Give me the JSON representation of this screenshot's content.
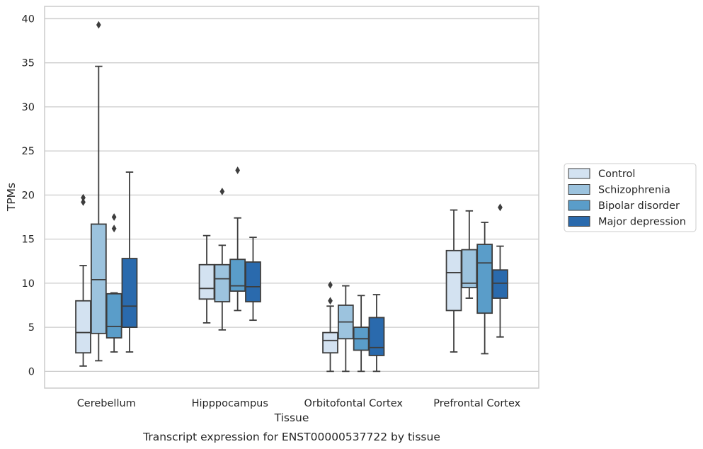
{
  "chart_data": {
    "type": "box",
    "caption": "Transcript expression for ENST00000537722 by tissue",
    "xlabel": "Tissue",
    "ylabel": "TPMs",
    "ylim": [
      -1.9,
      41.4
    ],
    "yticks": [
      0,
      5,
      10,
      15,
      20,
      25,
      30,
      35,
      40
    ],
    "grid": "horizontal",
    "legend_position": "right",
    "categories": [
      "Cerebellum",
      "Hipppocampus",
      "Orbitofontal Cortex",
      "Prefrontal Cortex"
    ],
    "series": [
      {
        "name": "Control",
        "color": "#d3e2f1",
        "boxes": [
          {
            "whislo": 0.6,
            "q1": 2.1,
            "med": 4.4,
            "q3": 8.0,
            "whishi": 12.0,
            "fliers": [
              19.2,
              19.7
            ]
          },
          {
            "whislo": 5.5,
            "q1": 8.2,
            "med": 9.4,
            "q3": 12.1,
            "whishi": 15.4,
            "fliers": []
          },
          {
            "whislo": 0.0,
            "q1": 2.1,
            "med": 3.5,
            "q3": 4.4,
            "whishi": 7.4,
            "fliers": [
              8.0,
              9.8
            ]
          },
          {
            "whislo": 2.2,
            "q1": 6.9,
            "med": 11.2,
            "q3": 13.7,
            "whishi": 18.3,
            "fliers": []
          }
        ]
      },
      {
        "name": "Schizophrenia",
        "color": "#9cc3de",
        "boxes": [
          {
            "whislo": 1.2,
            "q1": 4.3,
            "med": 10.4,
            "q3": 16.7,
            "whishi": 34.6,
            "fliers": [
              39.3
            ]
          },
          {
            "whislo": 4.7,
            "q1": 7.9,
            "med": 10.5,
            "q3": 12.1,
            "whishi": 14.3,
            "fliers": [
              20.4
            ]
          },
          {
            "whislo": 0.0,
            "q1": 3.7,
            "med": 5.6,
            "q3": 7.5,
            "whishi": 9.7,
            "fliers": []
          },
          {
            "whislo": 8.3,
            "q1": 9.5,
            "med": 10.0,
            "q3": 13.8,
            "whishi": 18.2,
            "fliers": []
          }
        ]
      },
      {
        "name": "Bipolar disorder",
        "color": "#5a9dc9",
        "boxes": [
          {
            "whislo": 2.2,
            "q1": 3.8,
            "med": 5.1,
            "q3": 8.8,
            "whishi": 8.9,
            "fliers": [
              16.2,
              17.5
            ]
          },
          {
            "whislo": 6.9,
            "q1": 9.1,
            "med": 9.7,
            "q3": 12.7,
            "whishi": 17.4,
            "fliers": [
              22.8
            ]
          },
          {
            "whislo": 0.0,
            "q1": 2.4,
            "med": 3.7,
            "q3": 5.0,
            "whishi": 8.6,
            "fliers": []
          },
          {
            "whislo": 2.0,
            "q1": 6.6,
            "med": 12.3,
            "q3": 14.4,
            "whishi": 16.9,
            "fliers": []
          }
        ]
      },
      {
        "name": "Major depression",
        "color": "#2a6aad",
        "boxes": [
          {
            "whislo": 2.2,
            "q1": 5.0,
            "med": 7.4,
            "q3": 12.8,
            "whishi": 22.6,
            "fliers": []
          },
          {
            "whislo": 5.8,
            "q1": 7.9,
            "med": 9.6,
            "q3": 12.4,
            "whishi": 15.2,
            "fliers": []
          },
          {
            "whislo": 0.0,
            "q1": 1.8,
            "med": 2.7,
            "q3": 6.1,
            "whishi": 8.7,
            "fliers": []
          },
          {
            "whislo": 3.9,
            "q1": 8.3,
            "med": 10.0,
            "q3": 11.5,
            "whishi": 14.2,
            "fliers": [
              18.6
            ]
          }
        ]
      }
    ]
  }
}
